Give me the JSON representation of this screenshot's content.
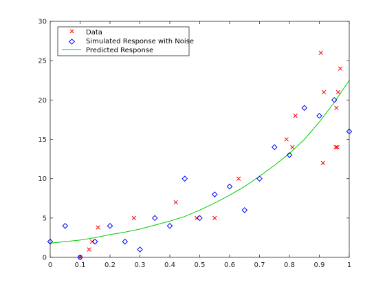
{
  "chart_data": {
    "type": "scatter",
    "title": "",
    "xlabel": "",
    "ylabel": "",
    "xlim": [
      0,
      1
    ],
    "ylim": [
      0,
      30
    ],
    "xticks": [
      0,
      0.1,
      0.2,
      0.3,
      0.4,
      0.5,
      0.6,
      0.7,
      0.8,
      0.9,
      1
    ],
    "xtick_labels": [
      "0",
      "0.1",
      "0.2",
      "0.3",
      "0.4",
      "0.5",
      "0.6",
      "0.7",
      "0.8",
      "0.9",
      "1"
    ],
    "yticks": [
      0,
      5,
      10,
      15,
      20,
      25,
      30
    ],
    "ytick_labels": [
      "0",
      "5",
      "10",
      "15",
      "20",
      "25",
      "30"
    ],
    "grid": false,
    "legend_position": "top-left",
    "series": [
      {
        "name": "Data",
        "marker": "x",
        "color": "#ff0000",
        "points": [
          [
            0.1,
            0.0
          ],
          [
            0.13,
            1.0
          ],
          [
            0.14,
            2.0
          ],
          [
            0.16,
            3.8
          ],
          [
            0.28,
            5.0
          ],
          [
            0.42,
            7.0
          ],
          [
            0.49,
            5.0
          ],
          [
            0.55,
            5.0
          ],
          [
            0.63,
            10.0
          ],
          [
            0.79,
            15.0
          ],
          [
            0.81,
            14.0
          ],
          [
            0.82,
            18.0
          ],
          [
            0.905,
            26.0
          ],
          [
            0.912,
            12.0
          ],
          [
            0.915,
            21.0
          ],
          [
            0.955,
            14.0
          ],
          [
            0.957,
            19.0
          ],
          [
            0.96,
            14.0
          ],
          [
            0.963,
            21.0
          ],
          [
            0.97,
            24.0
          ]
        ]
      },
      {
        "name": "Simulated Response with Noise",
        "marker": "diamond",
        "color": "#0000ff",
        "points": [
          [
            0.0,
            2.0
          ],
          [
            0.05,
            4.0
          ],
          [
            0.1,
            0.0
          ],
          [
            0.15,
            2.0
          ],
          [
            0.2,
            4.0
          ],
          [
            0.25,
            2.0
          ],
          [
            0.3,
            1.0
          ],
          [
            0.35,
            5.0
          ],
          [
            0.4,
            4.0
          ],
          [
            0.45,
            10.0
          ],
          [
            0.5,
            5.0
          ],
          [
            0.55,
            8.0
          ],
          [
            0.6,
            9.0
          ],
          [
            0.65,
            6.0
          ],
          [
            0.7,
            10.0
          ],
          [
            0.75,
            14.0
          ],
          [
            0.8,
            13.0
          ],
          [
            0.85,
            19.0
          ],
          [
            0.9,
            18.0
          ],
          [
            0.95,
            20.0
          ],
          [
            1.0,
            16.0
          ]
        ]
      },
      {
        "name": "Predicted Response",
        "marker": "line",
        "color": "#00cc00",
        "points": [
          [
            0.0,
            1.8
          ],
          [
            0.05,
            2.0
          ],
          [
            0.1,
            2.2
          ],
          [
            0.15,
            2.5
          ],
          [
            0.2,
            2.9
          ],
          [
            0.25,
            3.2
          ],
          [
            0.3,
            3.6
          ],
          [
            0.35,
            4.1
          ],
          [
            0.4,
            4.6
          ],
          [
            0.45,
            5.2
          ],
          [
            0.5,
            6.0
          ],
          [
            0.55,
            6.9
          ],
          [
            0.6,
            7.9
          ],
          [
            0.65,
            9.0
          ],
          [
            0.7,
            10.3
          ],
          [
            0.75,
            11.7
          ],
          [
            0.8,
            13.2
          ],
          [
            0.85,
            15.0
          ],
          [
            0.9,
            17.2
          ],
          [
            0.95,
            19.7
          ],
          [
            1.0,
            22.5
          ]
        ]
      }
    ]
  }
}
